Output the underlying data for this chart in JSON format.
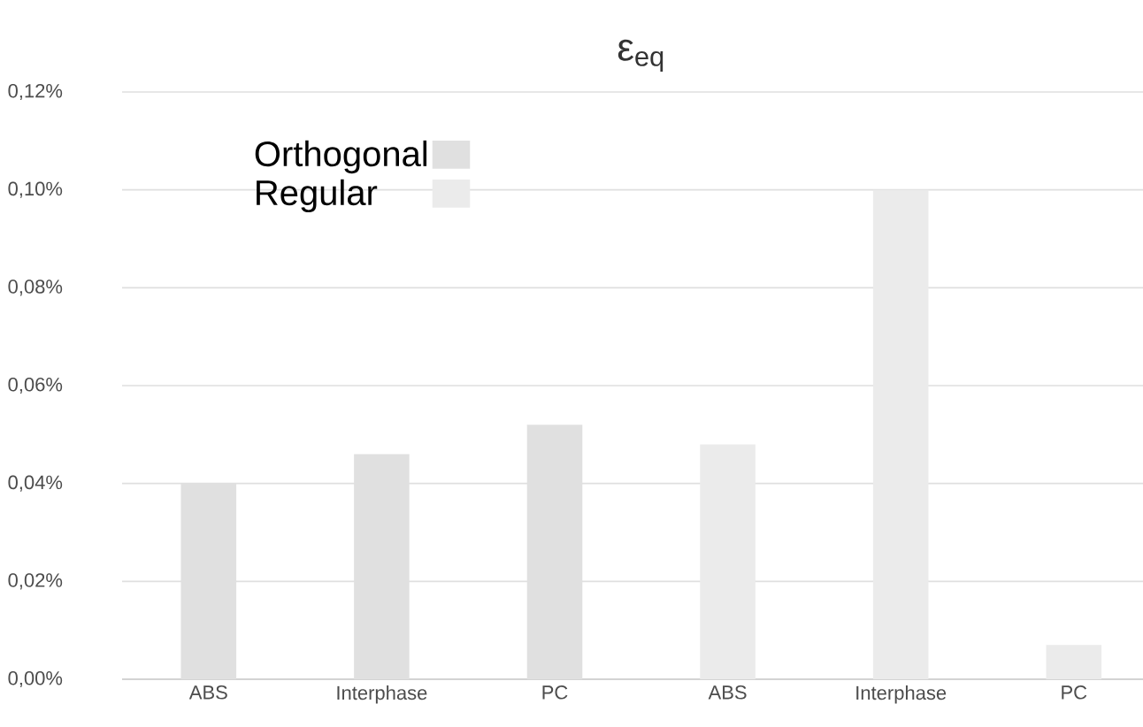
{
  "chart_data": {
    "type": "bar",
    "title": "ε$_{eq}$",
    "categories": [
      "ABS",
      "Interphase",
      "PC",
      "ABS",
      "Interphase",
      "PC"
    ],
    "series": [
      {
        "name": "Orthogonal",
        "color": "#e0e0e0",
        "values": [
          0.04,
          0.046,
          0.052,
          null,
          null,
          null
        ]
      },
      {
        "name": "Regular",
        "color": "#ebebeb",
        "values": [
          null,
          null,
          null,
          0.048,
          0.1,
          0.007
        ]
      }
    ],
    "ylim": [
      0,
      0.12
    ],
    "yticks": [
      {
        "value": 0,
        "label": "0,00%"
      },
      {
        "value": 0.02,
        "label": "0,02%"
      },
      {
        "value": 0.04,
        "label": "0,04%"
      },
      {
        "value": 0.06,
        "label": "0,06%"
      },
      {
        "value": 0.08,
        "label": "0,08%"
      },
      {
        "value": 0.1,
        "label": "0,10%"
      },
      {
        "value": 0.12,
        "label": "0,12%"
      }
    ],
    "grid": "y",
    "legend": "top left"
  }
}
